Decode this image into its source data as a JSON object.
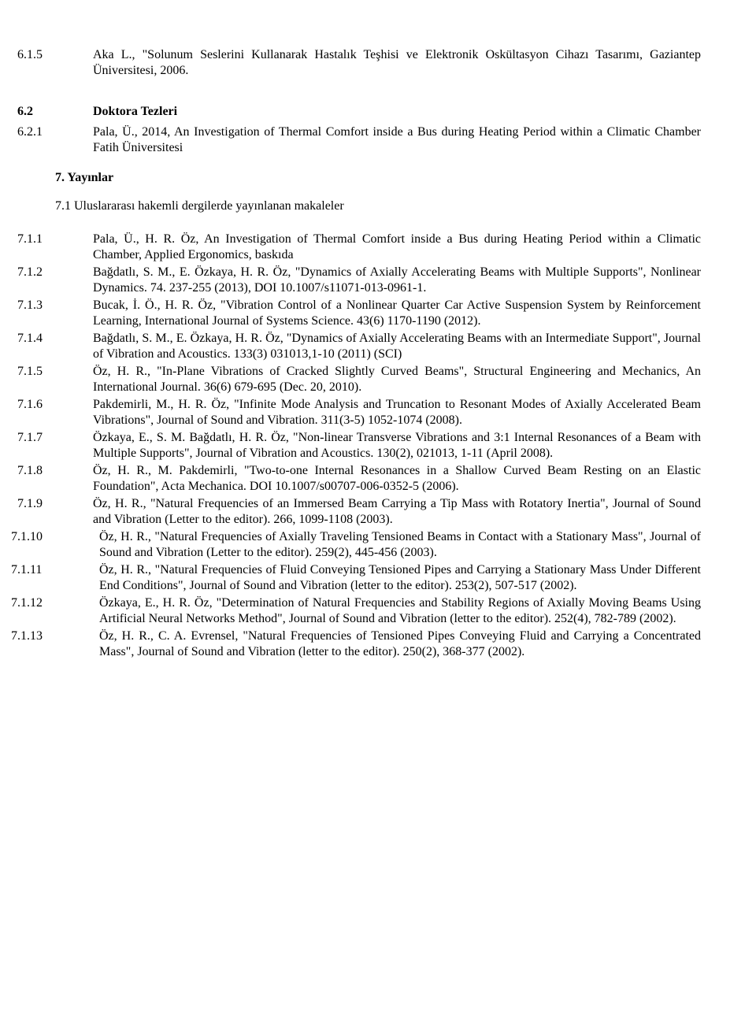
{
  "sec_615": {
    "num": "6.1.5",
    "text": "Aka L., \"Solunum Seslerini Kullanarak Hastalık Teşhisi ve Elektronik Oskültasyon Cihazı Tasarımı, Gaziantep Üniversitesi, 2006."
  },
  "sec_62_heading_num": "6.2",
  "sec_62_heading_text": "Doktora Tezleri",
  "sec_621": {
    "num": "6.2.1",
    "text": "Pala, Ü., 2014, An Investigation of Thermal Comfort inside a Bus during Heating Period within a Climatic Chamber Fatih Üniversitesi"
  },
  "sec_7_heading": "7. Yayınlar",
  "sec_71_heading": "7.1 Uluslararası hakemli dergilerde yayınlanan makaleler",
  "items": [
    {
      "num": "7.1.1",
      "text": "Pala, Ü., H. R. Öz, An Investigation of Thermal Comfort inside a Bus during Heating Period within a Climatic Chamber, Applied Ergonomics, baskıda"
    },
    {
      "num": "7.1.2",
      "text": "Bağdatlı, S. M., E. Özkaya, H. R. Öz, \"Dynamics of Axially Accelerating Beams with Multiple Supports\", Nonlinear Dynamics. 74. 237-255 (2013), DOI 10.1007/s11071-013-0961-1."
    },
    {
      "num": "7.1.3",
      "text": "Bucak, İ. Ö., H. R. Öz, \"Vibration Control of a Nonlinear Quarter Car Active Suspension System by Reinforcement Learning, International Journal of Systems Science. 43(6) 1170-1190 (2012)."
    },
    {
      "num": "7.1.4",
      "text": "Bağdatlı, S. M., E. Özkaya, H. R. Öz, \"Dynamics of Axially Accelerating Beams with an Intermediate Support\", Journal of Vibration and Acoustics. 133(3) 031013,1-10 (2011) (SCI)"
    },
    {
      "num": "7.1.5",
      "text": "Öz, H. R., \"In-Plane Vibrations of Cracked Slightly Curved Beams\", Structural Engineering and Mechanics, An International Journal. 36(6) 679-695 (Dec. 20, 2010)."
    },
    {
      "num": "7.1.6",
      "text": "Pakdemirli, M., H. R. Öz, \"Infinite Mode Analysis and Truncation to Resonant Modes of Axially Accelerated Beam Vibrations\", Journal of Sound and Vibration. 311(3-5) 1052-1074 (2008)."
    },
    {
      "num": "7.1.7",
      "text": "Özkaya, E., S. M. Bağdatlı, H. R. Öz, \"Non-linear Transverse Vibrations and 3:1 Internal Resonances of a Beam with Multiple Supports\", Journal of Vibration and Acoustics. 130(2), 021013, 1-11 (April 2008)."
    },
    {
      "num": "7.1.8",
      "text": "Öz, H. R., M. Pakdemirli, \"Two-to-one Internal Resonances in a Shallow Curved Beam Resting on an Elastic Foundation\", Acta Mechanica. DOI 10.1007/s00707-006-0352-5 (2006)."
    },
    {
      "num": "7.1.9",
      "text": "Öz, H. R., \"Natural Frequencies of an Immersed Beam Carrying a Tip Mass with Rotatory Inertia\", Journal of Sound and Vibration (Letter to the editor). 266, 1099-1108 (2003)."
    },
    {
      "num": "7.1.10",
      "text": "Öz, H. R., \"Natural Frequencies of Axially Traveling Tensioned Beams in Contact with a Stationary Mass\", Journal of Sound and Vibration (Letter to the editor). 259(2), 445-456 (2003)."
    },
    {
      "num": "7.1.11",
      "text": "Öz, H. R., \"Natural Frequencies of Fluid Conveying Tensioned Pipes and Carrying a Stationary Mass Under Different End Conditions\", Journal of Sound and Vibration (letter to the editor). 253(2), 507-517 (2002)."
    },
    {
      "num": "7.1.12",
      "text": "Özkaya, E., H. R. Öz, \"Determination of Natural Frequencies and Stability Regions of Axially Moving Beams Using Artificial Neural Networks Method\", Journal of Sound and Vibration (letter to the editor). 252(4), 782-789 (2002)."
    },
    {
      "num": "7.1.13",
      "text": "Öz, H. R., C. A. Evrensel, \"Natural Frequencies of Tensioned Pipes Conveying Fluid and Carrying a Concentrated Mass\", Journal of Sound and Vibration (letter to the editor). 250(2), 368-377 (2002)."
    }
  ]
}
